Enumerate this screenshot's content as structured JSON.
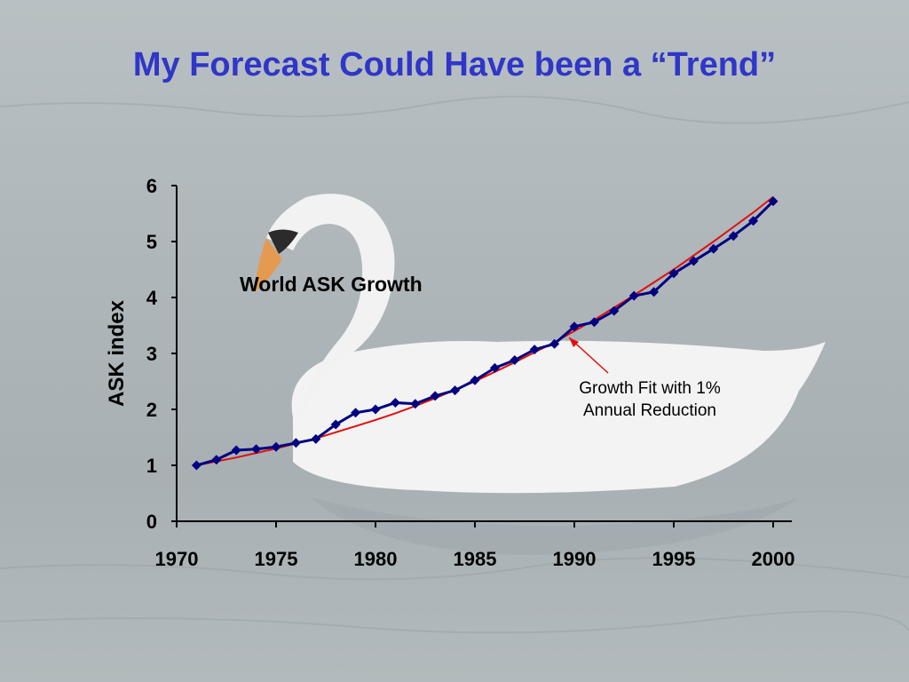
{
  "slide": {
    "title": "My Forecast Could Have been a “Trend”"
  },
  "colors": {
    "title": "#2f36c8",
    "series_actual": "#000080",
    "series_fit": "#e01010",
    "annotation_arrow": "#e01010"
  },
  "chart_data": {
    "type": "line",
    "title": "World ASK Growth",
    "xlabel": "",
    "ylabel": "ASK index",
    "xlim": [
      1970,
      2000
    ],
    "ylim": [
      0,
      6
    ],
    "x_ticks": [
      1970,
      1975,
      1980,
      1985,
      1990,
      1995,
      2000
    ],
    "y_ticks": [
      0,
      1,
      2,
      3,
      4,
      5,
      6
    ],
    "grid": false,
    "series": [
      {
        "marker": "diamond",
        "x": [
          1971,
          1972,
          1973,
          1974,
          1975,
          1976,
          1977,
          1978,
          1979,
          1980,
          1981,
          1982,
          1983,
          1984,
          1985,
          1986,
          1987,
          1988,
          1989,
          1990,
          1991,
          1992,
          1993,
          1994,
          1995,
          1996,
          1997,
          1998,
          1999,
          2000
        ],
        "values": [
          1.0,
          1.1,
          1.27,
          1.29,
          1.33,
          1.4,
          1.47,
          1.73,
          1.94,
          2.0,
          2.12,
          2.1,
          2.24,
          2.34,
          2.52,
          2.74,
          2.88,
          3.07,
          3.17,
          3.48,
          3.56,
          3.76,
          4.03,
          4.1,
          4.43,
          4.65,
          4.87,
          5.1,
          5.37,
          5.72
        ]
      },
      {
        "x": [
          1971,
          1972,
          1973,
          1974,
          1975,
          1976,
          1977,
          1978,
          1979,
          1980,
          1981,
          1982,
          1983,
          1984,
          1985,
          1986,
          1987,
          1988,
          1989,
          1990,
          1991,
          1992,
          1993,
          1994,
          1995,
          1996,
          1997,
          1998,
          1999,
          2000
        ],
        "values": [
          1.0,
          1.07,
          1.14,
          1.22,
          1.3,
          1.39,
          1.48,
          1.59,
          1.7,
          1.81,
          1.93,
          2.06,
          2.2,
          2.35,
          2.5,
          2.67,
          2.84,
          3.02,
          3.2,
          3.4,
          3.6,
          3.82,
          4.04,
          4.27,
          4.5,
          4.75,
          5.0,
          5.26,
          5.52,
          5.8
        ]
      }
    ],
    "annotations": [
      {
        "text_line1": "Growth Fit with 1%",
        "text_line2": "Annual Reduction"
      }
    ]
  }
}
